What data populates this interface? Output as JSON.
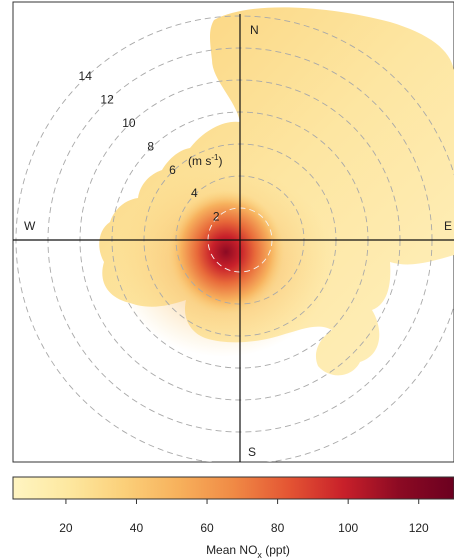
{
  "chart_data": {
    "type": "polar_plot",
    "title": "",
    "compass": {
      "north": "N",
      "east": "E",
      "south": "S",
      "west": "W"
    },
    "radial_axis": {
      "ticks": [
        2,
        4,
        6,
        8,
        10,
        12,
        14
      ],
      "tick_labels": [
        "2",
        "4",
        "6",
        "8",
        "10",
        "12",
        "14"
      ],
      "unit_label": "(m s",
      "unit_superscript": "-1",
      "unit_close": ")",
      "max": 15,
      "gridlines": "dashed circles"
    },
    "colorbar": {
      "title_main": "Mean NO",
      "title_sub": "x",
      "title_unit": " (ppt)",
      "range": [
        5,
        130
      ],
      "ticks": [
        20,
        40,
        60,
        80,
        100,
        120
      ],
      "tick_labels": [
        "20",
        "40",
        "60",
        "80",
        "100",
        "120"
      ],
      "colors": [
        "#fff5c2",
        "#fde8a0",
        "#fbd07a",
        "#f7b15c",
        "#f08a45",
        "#e45533",
        "#c8202a",
        "#8c0a23",
        "#6b0020"
      ]
    },
    "field": {
      "description_values": "mean NOx concentration vs wind direction and speed",
      "peak": {
        "direction_deg": 180,
        "speed": 0.8,
        "value": 128
      },
      "samples": [
        {
          "direction_deg": 0,
          "speed": 1,
          "value": 95
        },
        {
          "direction_deg": 200,
          "speed": 1,
          "value": 110
        },
        {
          "direction_deg": 240,
          "speed": 2,
          "value": 70
        },
        {
          "direction_deg": 180,
          "speed": 3,
          "value": 60
        },
        {
          "direction_deg": 270,
          "speed": 4,
          "value": 45
        },
        {
          "direction_deg": 300,
          "speed": 6,
          "value": 35
        },
        {
          "direction_deg": 90,
          "speed": 6,
          "value": 30
        },
        {
          "direction_deg": 30,
          "speed": 10,
          "value": 12
        },
        {
          "direction_deg": 60,
          "speed": 12,
          "value": 10
        },
        {
          "direction_deg": 150,
          "speed": 8,
          "value": 18
        }
      ]
    }
  }
}
